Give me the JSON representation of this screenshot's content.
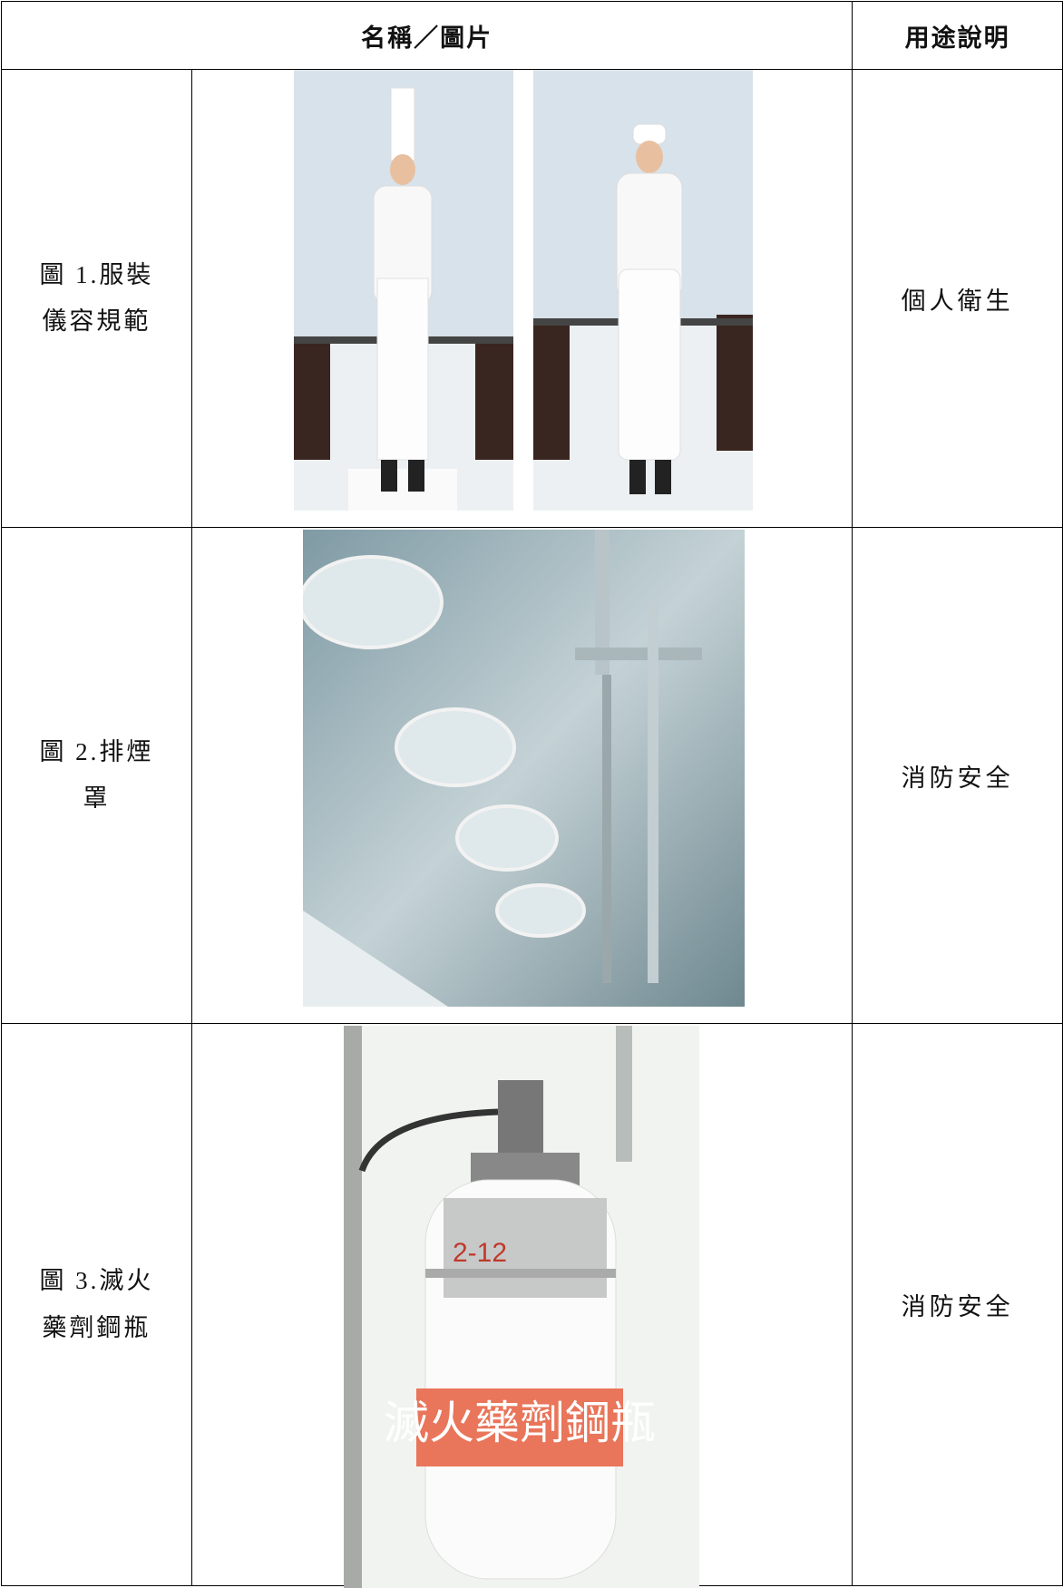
{
  "table": {
    "header": [
      "名稱／圖片",
      "用途說明"
    ],
    "rows": [
      {
        "name": "圖 1.服裝儀容規範",
        "use": "個人衛生"
      },
      {
        "name": "圖 2.排煙罩",
        "use": "消防安全"
      },
      {
        "name": "圖 3.滅火藥劑鋼瓶",
        "use": "消防安全",
        "image_labels": [
          "2-12",
          "滅火藥劑鋼瓶"
        ]
      }
    ]
  }
}
